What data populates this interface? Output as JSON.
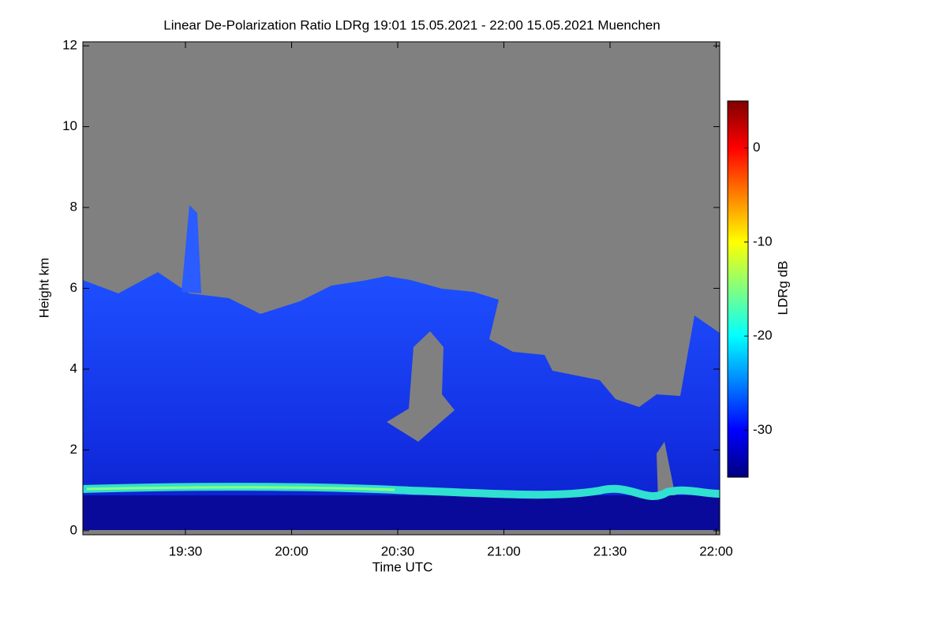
{
  "chart_data": {
    "type": "heatmap",
    "title": "Linear De-Polarization Ratio LDRg   19:01 15.05.2021 - 22:00 15.05.2021 Muenchen",
    "x_label": "Time UTC",
    "y_label": "Height km",
    "xlim": [
      19.0167,
      22.0167
    ],
    "xticks": [
      {
        "value": 19.5,
        "label": "19:30"
      },
      {
        "value": 20,
        "label": "20:00"
      },
      {
        "value": 20.5,
        "label": "20:30"
      },
      {
        "value": 21,
        "label": "21:00"
      },
      {
        "value": 21.5,
        "label": "21:30"
      },
      {
        "value": 22,
        "label": "22:00"
      }
    ],
    "ylim": [
      -0.1,
      12.1
    ],
    "yticks": [
      0,
      2,
      4,
      6,
      8,
      10,
      12
    ],
    "colorbar": {
      "label": "LDRg dB",
      "lim": [
        -35,
        5
      ],
      "ticks": [
        0,
        -10,
        -20,
        -30
      ],
      "colormap": [
        "#00007f",
        "#0000ff",
        "#0080ff",
        "#00ffff",
        "#80ff80",
        "#ffff00",
        "#ff8000",
        "#ff0000",
        "#7f0000"
      ]
    }
  }
}
